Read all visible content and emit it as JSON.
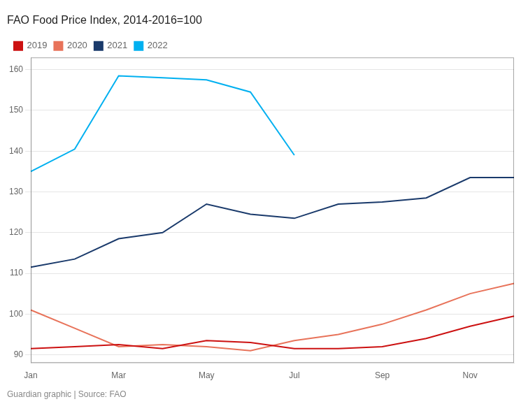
{
  "chart_data": {
    "type": "line",
    "title": "FAO Food Price Index, 2014-2016=100",
    "annotations": [
      "Guardian graphic | Source: FAO"
    ],
    "categories": [
      "Jan",
      null,
      "Mar",
      null,
      "May",
      null,
      "Jul",
      null,
      "Sep",
      null,
      "Nov",
      null
    ],
    "series": [
      {
        "name": "2019",
        "color": "#cc1111",
        "values": [
          91.5,
          92.0,
          92.5,
          91.5,
          93.5,
          93.0,
          91.5,
          91.5,
          92.0,
          94.0,
          97.0,
          99.5
        ]
      },
      {
        "name": "2020",
        "color": "#e8735a",
        "values": [
          101.0,
          96.5,
          92.0,
          92.5,
          92.0,
          91.0,
          93.5,
          95.0,
          97.5,
          101.0,
          105.0,
          107.5
        ]
      },
      {
        "name": "2021",
        "color": "#1a3a6b",
        "values": [
          111.5,
          113.5,
          118.5,
          120.0,
          127.0,
          124.5,
          123.5,
          127.0,
          127.5,
          128.5,
          133.5,
          133.5
        ]
      },
      {
        "name": "2022",
        "color": "#00b0f0",
        "values": [
          135.0,
          140.5,
          158.5,
          158.0,
          157.5,
          154.5,
          139.0,
          null,
          null,
          null,
          null,
          null
        ]
      }
    ],
    "ylim": [
      88,
      163
    ],
    "yticks": [
      90,
      100,
      110,
      120,
      130,
      140,
      150,
      160
    ],
    "grid": "y",
    "legend": "top"
  }
}
